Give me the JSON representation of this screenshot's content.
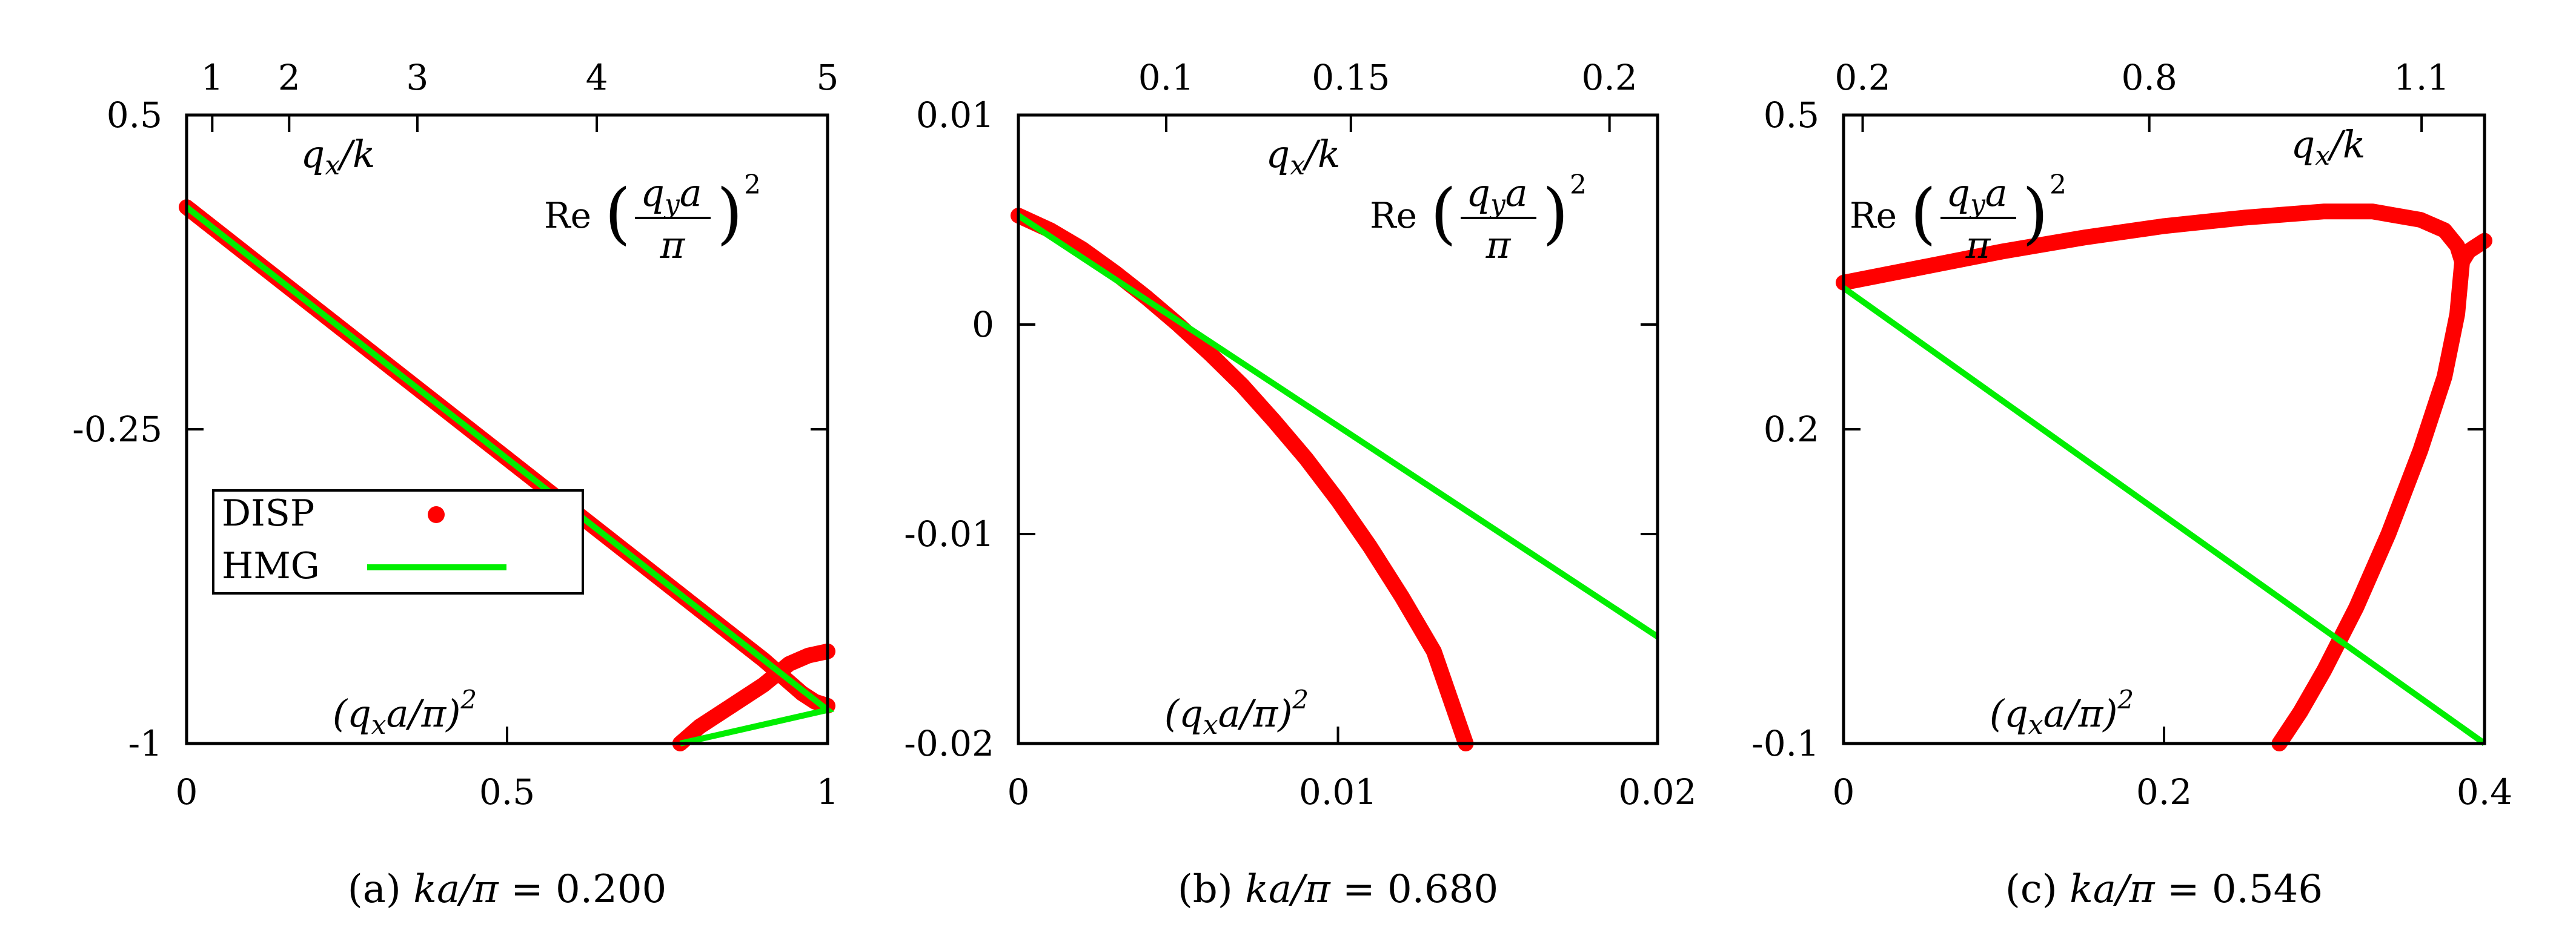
{
  "colors": {
    "disp": "#ff0000",
    "hmg": "#00ee00",
    "axis": "#000000"
  },
  "legend": {
    "disp_label": "DISP",
    "hmg_label": "HMG"
  },
  "chart_data": [
    {
      "type": "line",
      "caption": "(a) ka/π = 0.200",
      "xlabel": "(qₓa/π)²",
      "x2label": "qₓ/k",
      "ylabel": "Re (q_y a / π)²",
      "xlim": [
        0,
        1
      ],
      "ylim": [
        -1,
        0.5
      ],
      "xticks": [
        0,
        0.5,
        1
      ],
      "xtick_labels": [
        "0",
        "0.5",
        "1"
      ],
      "yticks": [
        0.5,
        -0.25,
        -1
      ],
      "ytick_labels": [
        "0.5",
        "-0.25",
        "-1"
      ],
      "x2ticks": [
        1,
        2,
        3,
        4,
        5
      ],
      "x2_ka": 0.2,
      "grid": false,
      "legend_position": "middle-left",
      "series": [
        {
          "name": "DISP",
          "style": "points",
          "x": [
            0,
            0.1,
            0.2,
            0.3,
            0.4,
            0.5,
            0.6,
            0.7,
            0.8,
            0.85,
            0.9,
            0.93,
            0.96,
            0.98,
            1.0
          ],
          "y": [
            0.28,
            0.16,
            0.04,
            -0.08,
            -0.2,
            -0.32,
            -0.44,
            -0.56,
            -0.68,
            -0.74,
            -0.8,
            -0.84,
            -0.88,
            -0.9,
            -0.91
          ]
        },
        {
          "name": "DISP",
          "style": "points",
          "x": [
            0.77,
            0.8,
            0.85,
            0.9,
            0.94,
            0.97,
            1.0
          ],
          "y": [
            -1.0,
            -0.96,
            -0.91,
            -0.86,
            -0.81,
            -0.79,
            -0.78
          ]
        },
        {
          "name": "HMG",
          "style": "line",
          "x": [
            0,
            0.5,
            1.0,
            0.77
          ],
          "y": [
            0.28,
            -0.32,
            -0.92,
            -1.0
          ]
        }
      ]
    },
    {
      "type": "line",
      "caption": "(b) ka/π = 0.680",
      "xlabel": "(qₓa/π)²",
      "x2label": "qₓ/k",
      "ylabel": "Re (q_y a / π)²",
      "xlim": [
        0,
        0.02
      ],
      "ylim": [
        -0.02,
        0.01
      ],
      "xticks": [
        0,
        0.01,
        0.02
      ],
      "xtick_labels": [
        "0",
        "0.01",
        "0.02"
      ],
      "yticks": [
        0.01,
        0,
        -0.01,
        -0.02
      ],
      "ytick_labels": [
        "0.01",
        "0",
        "-0.01",
        "-0.02"
      ],
      "x2ticks": [
        0.1,
        0.15,
        0.2
      ],
      "x2_ka": 0.68,
      "grid": false,
      "series": [
        {
          "name": "DISP",
          "style": "points",
          "x": [
            0,
            0.001,
            0.002,
            0.003,
            0.004,
            0.005,
            0.006,
            0.007,
            0.008,
            0.009,
            0.01,
            0.011,
            0.012,
            0.013,
            0.014
          ],
          "y": [
            0.0052,
            0.0045,
            0.0036,
            0.0025,
            0.0013,
            0.0,
            -0.0014,
            -0.0029,
            -0.0046,
            -0.0064,
            -0.0084,
            -0.0106,
            -0.013,
            -0.0156,
            -0.02
          ]
        },
        {
          "name": "HMG",
          "style": "line",
          "x": [
            0,
            0.02
          ],
          "y": [
            0.0052,
            -0.0149
          ]
        }
      ]
    },
    {
      "type": "line",
      "caption": "(c) ka/π = 0.546",
      "xlabel": "(qₓa/π)²",
      "x2label": "qₓ/k",
      "ylabel": "Re (q_y a / π)²",
      "xlim": [
        0,
        0.4
      ],
      "ylim": [
        -0.1,
        0.5
      ],
      "xticks": [
        0,
        0.2,
        0.4
      ],
      "xtick_labels": [
        "0",
        "0.2",
        "0.4"
      ],
      "yticks": [
        0.5,
        0.2,
        -0.1
      ],
      "ytick_labels": [
        "0.5",
        "0.2",
        "-0.1"
      ],
      "x2ticks": [
        0.2,
        0.8,
        1.1
      ],
      "x2_ka": 0.546,
      "grid": false,
      "series": [
        {
          "name": "DISP",
          "style": "points",
          "x": [
            0,
            0.05,
            0.1,
            0.15,
            0.2,
            0.25,
            0.3,
            0.33,
            0.36,
            0.375,
            0.383,
            0.386,
            0.39,
            0.4
          ],
          "y": [
            0.34,
            0.355,
            0.37,
            0.383,
            0.394,
            0.402,
            0.408,
            0.408,
            0.4,
            0.39,
            0.375,
            0.36,
            0.37,
            0.38
          ]
        },
        {
          "name": "DISP",
          "style": "points",
          "x": [
            0.272,
            0.285,
            0.3,
            0.32,
            0.34,
            0.36,
            0.375,
            0.383,
            0.386
          ],
          "y": [
            -0.1,
            -0.07,
            -0.03,
            0.03,
            0.1,
            0.18,
            0.25,
            0.31,
            0.36
          ]
        },
        {
          "name": "HMG",
          "style": "line",
          "x": [
            0,
            0.4
          ],
          "y": [
            0.335,
            -0.1
          ]
        }
      ]
    }
  ]
}
